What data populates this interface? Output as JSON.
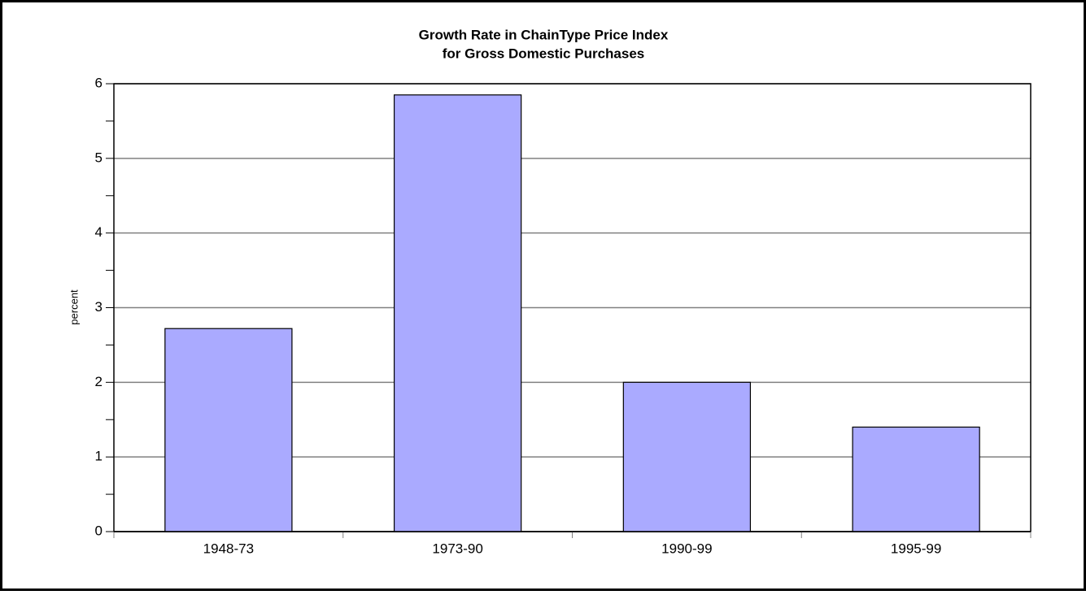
{
  "chart_data": {
    "type": "bar",
    "title": "Growth Rate in ChainType Price Index",
    "subtitle": "for Gross Domestic Purchases",
    "y_label": "percent",
    "categories": [
      "1948-73",
      "1973-90",
      "1990-99",
      "1995-99"
    ],
    "values": [
      2.72,
      5.85,
      2.0,
      1.4
    ],
    "color": "#aaaaff",
    "ylim": [
      0,
      6
    ],
    "yticks": [
      0,
      1,
      2,
      3,
      4,
      5,
      6
    ],
    "yminor_ticks": [
      0.5,
      1.5,
      2.5,
      3.5,
      4.5,
      5.5
    ],
    "grid": true
  }
}
